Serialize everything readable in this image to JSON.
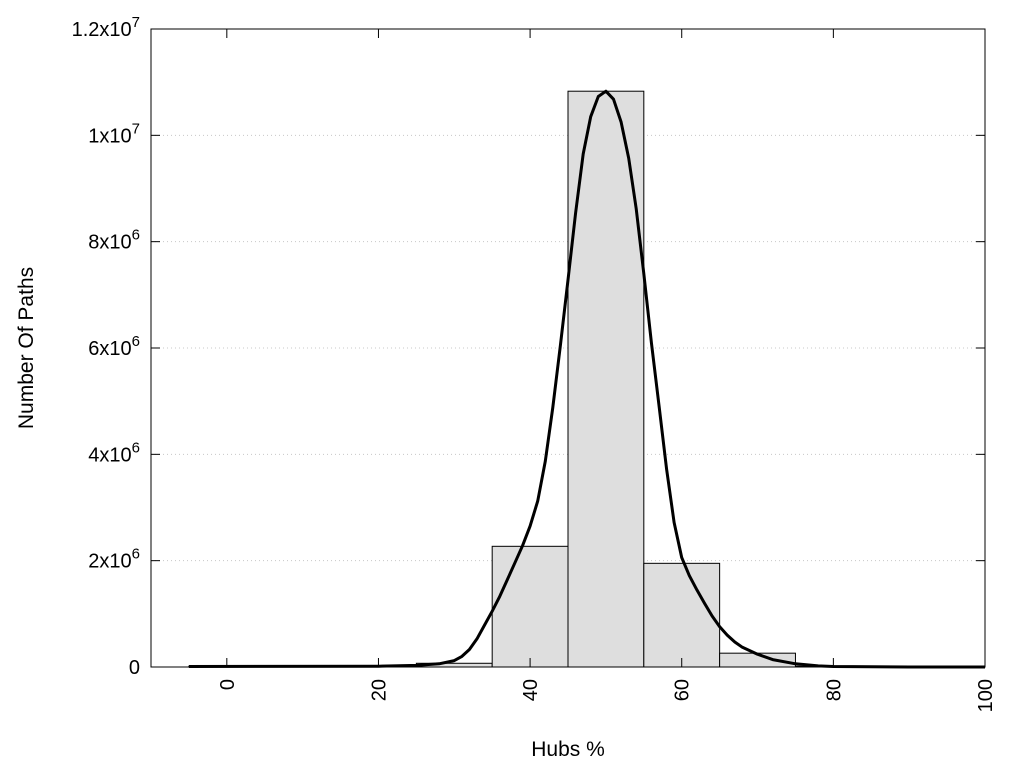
{
  "chart_data": {
    "type": "bar",
    "title": "",
    "xlabel": "Hubs %",
    "ylabel": "Number Of Paths",
    "xlim": [
      -10,
      100
    ],
    "ylim": [
      0,
      12000000
    ],
    "grid": {
      "y": true,
      "x": false,
      "style": "dotted"
    },
    "x_ticks": [
      0,
      20,
      40,
      60,
      80,
      100
    ],
    "x_tick_labels": [
      "0",
      "20",
      "40",
      "60",
      "80",
      "100"
    ],
    "y_ticks": [
      0,
      2000000,
      4000000,
      6000000,
      8000000,
      10000000,
      12000000
    ],
    "y_tick_labels": [
      {
        "base": "0",
        "exp": ""
      },
      {
        "base": "2x10",
        "exp": "6"
      },
      {
        "base": "4x10",
        "exp": "6"
      },
      {
        "base": "6x10",
        "exp": "6"
      },
      {
        "base": "8x10",
        "exp": "6"
      },
      {
        "base": "1x10",
        "exp": "7"
      },
      {
        "base": "1.2x10",
        "exp": "7"
      }
    ],
    "bars": [
      {
        "center": 0,
        "width": 10,
        "value": 15000
      },
      {
        "center": 10,
        "width": 10,
        "value": 10000
      },
      {
        "center": 20,
        "width": 10,
        "value": 15000
      },
      {
        "center": 30,
        "width": 10,
        "value": 70000
      },
      {
        "center": 40,
        "width": 10,
        "value": 2270000
      },
      {
        "center": 50,
        "width": 10,
        "value": 10830000
      },
      {
        "center": 60,
        "width": 10,
        "value": 1950000
      },
      {
        "center": 70,
        "width": 10,
        "value": 260000
      },
      {
        "center": 80,
        "width": 10,
        "value": 15000
      },
      {
        "center": 90,
        "width": 10,
        "value": 10000
      },
      {
        "center": 100,
        "width": 10,
        "value": 10000
      }
    ],
    "curve": {
      "x": [
        -5,
        20,
        25,
        28,
        30,
        31,
        32,
        33,
        34,
        35,
        36,
        37,
        38,
        39,
        40,
        41,
        42,
        43,
        44,
        45,
        46,
        47,
        48,
        49,
        50,
        51,
        52,
        53,
        54,
        55,
        56,
        57,
        58,
        59,
        60,
        61,
        62,
        63,
        64,
        65,
        66,
        67,
        68,
        70,
        72,
        75,
        78,
        80,
        85,
        90,
        100
      ],
      "y": [
        10000,
        15000,
        30000,
        60000,
        120000,
        200000,
        330000,
        530000,
        790000,
        1050000,
        1330000,
        1640000,
        1960000,
        2280000,
        2650000,
        3120000,
        3870000,
        4880000,
        6050000,
        7280000,
        8540000,
        9650000,
        10350000,
        10730000,
        10830000,
        10680000,
        10250000,
        9570000,
        8620000,
        7400000,
        6100000,
        4920000,
        3720000,
        2720000,
        2060000,
        1720000,
        1450000,
        1200000,
        960000,
        760000,
        600000,
        470000,
        370000,
        240000,
        140000,
        60000,
        20000,
        10000,
        3000,
        0,
        0
      ]
    },
    "bar_fill": "#dedede",
    "bar_stroke": "#000000",
    "curve_color": "#000000",
    "grid_color": "#c8c8c8"
  }
}
